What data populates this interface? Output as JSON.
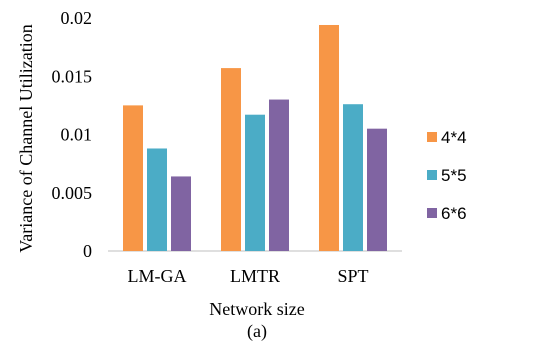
{
  "chart_data": {
    "type": "bar",
    "categories": [
      "LM-GA",
      "LMTR",
      "SPT"
    ],
    "series": [
      {
        "name": "4*4",
        "values": [
          0.0125,
          0.0157,
          0.0194
        ]
      },
      {
        "name": "5*5",
        "values": [
          0.0088,
          0.0117,
          0.0126
        ]
      },
      {
        "name": "6*6",
        "values": [
          0.0064,
          0.013,
          0.0105
        ]
      }
    ],
    "colors": [
      "#F79646",
      "#4BACC6",
      "#8064A2"
    ],
    "xlabel": "Network size",
    "ylabel": "Variance of Channel Utilization",
    "caption": "(a)",
    "ylim": [
      0,
      0.02
    ],
    "yticks": [
      0,
      0.005,
      0.01,
      0.015,
      0.02
    ],
    "ytick_labels": [
      "0",
      "0.005",
      "0.01",
      "0.015",
      "0.02"
    ],
    "grid": false,
    "legend_position": "right"
  }
}
